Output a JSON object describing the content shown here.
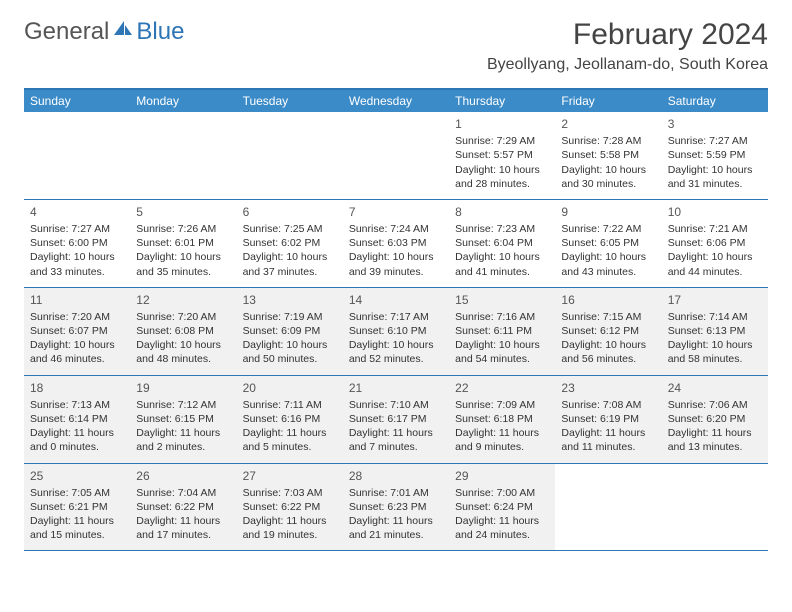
{
  "logo": {
    "part1": "General",
    "part2": "Blue"
  },
  "title": "February 2024",
  "location": "Byeollyang, Jeollanam-do, South Korea",
  "colors": {
    "header_bg": "#3b8bc8",
    "rule": "#2e75b6",
    "shade": "#f1f1f1",
    "text": "#333333"
  },
  "day_names": [
    "Sunday",
    "Monday",
    "Tuesday",
    "Wednesday",
    "Thursday",
    "Friday",
    "Saturday"
  ],
  "weeks": [
    [
      {
        "blank": true
      },
      {
        "blank": true
      },
      {
        "blank": true
      },
      {
        "blank": true
      },
      {
        "n": "1",
        "sr": "Sunrise: 7:29 AM",
        "ss": "Sunset: 5:57 PM",
        "dl1": "Daylight: 10 hours",
        "dl2": "and 28 minutes."
      },
      {
        "n": "2",
        "sr": "Sunrise: 7:28 AM",
        "ss": "Sunset: 5:58 PM",
        "dl1": "Daylight: 10 hours",
        "dl2": "and 30 minutes."
      },
      {
        "n": "3",
        "sr": "Sunrise: 7:27 AM",
        "ss": "Sunset: 5:59 PM",
        "dl1": "Daylight: 10 hours",
        "dl2": "and 31 minutes."
      }
    ],
    [
      {
        "n": "4",
        "sr": "Sunrise: 7:27 AM",
        "ss": "Sunset: 6:00 PM",
        "dl1": "Daylight: 10 hours",
        "dl2": "and 33 minutes."
      },
      {
        "n": "5",
        "sr": "Sunrise: 7:26 AM",
        "ss": "Sunset: 6:01 PM",
        "dl1": "Daylight: 10 hours",
        "dl2": "and 35 minutes."
      },
      {
        "n": "6",
        "sr": "Sunrise: 7:25 AM",
        "ss": "Sunset: 6:02 PM",
        "dl1": "Daylight: 10 hours",
        "dl2": "and 37 minutes."
      },
      {
        "n": "7",
        "sr": "Sunrise: 7:24 AM",
        "ss": "Sunset: 6:03 PM",
        "dl1": "Daylight: 10 hours",
        "dl2": "and 39 minutes."
      },
      {
        "n": "8",
        "sr": "Sunrise: 7:23 AM",
        "ss": "Sunset: 6:04 PM",
        "dl1": "Daylight: 10 hours",
        "dl2": "and 41 minutes."
      },
      {
        "n": "9",
        "sr": "Sunrise: 7:22 AM",
        "ss": "Sunset: 6:05 PM",
        "dl1": "Daylight: 10 hours",
        "dl2": "and 43 minutes."
      },
      {
        "n": "10",
        "sr": "Sunrise: 7:21 AM",
        "ss": "Sunset: 6:06 PM",
        "dl1": "Daylight: 10 hours",
        "dl2": "and 44 minutes."
      }
    ],
    [
      {
        "n": "11",
        "sr": "Sunrise: 7:20 AM",
        "ss": "Sunset: 6:07 PM",
        "dl1": "Daylight: 10 hours",
        "dl2": "and 46 minutes.",
        "shade": true
      },
      {
        "n": "12",
        "sr": "Sunrise: 7:20 AM",
        "ss": "Sunset: 6:08 PM",
        "dl1": "Daylight: 10 hours",
        "dl2": "and 48 minutes.",
        "shade": true
      },
      {
        "n": "13",
        "sr": "Sunrise: 7:19 AM",
        "ss": "Sunset: 6:09 PM",
        "dl1": "Daylight: 10 hours",
        "dl2": "and 50 minutes.",
        "shade": true
      },
      {
        "n": "14",
        "sr": "Sunrise: 7:17 AM",
        "ss": "Sunset: 6:10 PM",
        "dl1": "Daylight: 10 hours",
        "dl2": "and 52 minutes.",
        "shade": true
      },
      {
        "n": "15",
        "sr": "Sunrise: 7:16 AM",
        "ss": "Sunset: 6:11 PM",
        "dl1": "Daylight: 10 hours",
        "dl2": "and 54 minutes.",
        "shade": true
      },
      {
        "n": "16",
        "sr": "Sunrise: 7:15 AM",
        "ss": "Sunset: 6:12 PM",
        "dl1": "Daylight: 10 hours",
        "dl2": "and 56 minutes.",
        "shade": true
      },
      {
        "n": "17",
        "sr": "Sunrise: 7:14 AM",
        "ss": "Sunset: 6:13 PM",
        "dl1": "Daylight: 10 hours",
        "dl2": "and 58 minutes.",
        "shade": true
      }
    ],
    [
      {
        "n": "18",
        "sr": "Sunrise: 7:13 AM",
        "ss": "Sunset: 6:14 PM",
        "dl1": "Daylight: 11 hours",
        "dl2": "and 0 minutes.",
        "shade": true
      },
      {
        "n": "19",
        "sr": "Sunrise: 7:12 AM",
        "ss": "Sunset: 6:15 PM",
        "dl1": "Daylight: 11 hours",
        "dl2": "and 2 minutes.",
        "shade": true
      },
      {
        "n": "20",
        "sr": "Sunrise: 7:11 AM",
        "ss": "Sunset: 6:16 PM",
        "dl1": "Daylight: 11 hours",
        "dl2": "and 5 minutes.",
        "shade": true
      },
      {
        "n": "21",
        "sr": "Sunrise: 7:10 AM",
        "ss": "Sunset: 6:17 PM",
        "dl1": "Daylight: 11 hours",
        "dl2": "and 7 minutes.",
        "shade": true
      },
      {
        "n": "22",
        "sr": "Sunrise: 7:09 AM",
        "ss": "Sunset: 6:18 PM",
        "dl1": "Daylight: 11 hours",
        "dl2": "and 9 minutes.",
        "shade": true
      },
      {
        "n": "23",
        "sr": "Sunrise: 7:08 AM",
        "ss": "Sunset: 6:19 PM",
        "dl1": "Daylight: 11 hours",
        "dl2": "and 11 minutes.",
        "shade": true
      },
      {
        "n": "24",
        "sr": "Sunrise: 7:06 AM",
        "ss": "Sunset: 6:20 PM",
        "dl1": "Daylight: 11 hours",
        "dl2": "and 13 minutes.",
        "shade": true
      }
    ],
    [
      {
        "n": "25",
        "sr": "Sunrise: 7:05 AM",
        "ss": "Sunset: 6:21 PM",
        "dl1": "Daylight: 11 hours",
        "dl2": "and 15 minutes.",
        "shade": true
      },
      {
        "n": "26",
        "sr": "Sunrise: 7:04 AM",
        "ss": "Sunset: 6:22 PM",
        "dl1": "Daylight: 11 hours",
        "dl2": "and 17 minutes.",
        "shade": true
      },
      {
        "n": "27",
        "sr": "Sunrise: 7:03 AM",
        "ss": "Sunset: 6:22 PM",
        "dl1": "Daylight: 11 hours",
        "dl2": "and 19 minutes.",
        "shade": true
      },
      {
        "n": "28",
        "sr": "Sunrise: 7:01 AM",
        "ss": "Sunset: 6:23 PM",
        "dl1": "Daylight: 11 hours",
        "dl2": "and 21 minutes.",
        "shade": true
      },
      {
        "n": "29",
        "sr": "Sunrise: 7:00 AM",
        "ss": "Sunset: 6:24 PM",
        "dl1": "Daylight: 11 hours",
        "dl2": "and 24 minutes.",
        "shade": true
      },
      {
        "blank": true
      },
      {
        "blank": true
      }
    ]
  ]
}
